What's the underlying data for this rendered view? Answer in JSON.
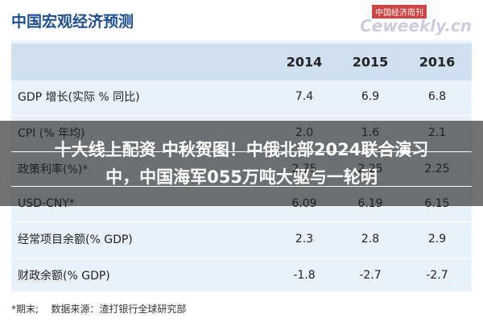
{
  "header": {
    "title": "中国宏观经济预测",
    "logo": "中国经济周刊",
    "logo_sub": "Ceweekly.cn"
  },
  "table": {
    "columns": [
      "2014",
      "2015",
      "2016"
    ],
    "rows": [
      [
        "GDP 增长(实际 % 同比)",
        "7.4",
        "6.9",
        "6.8"
      ],
      [
        "CPI (% 年均)",
        "2.0",
        "1.6",
        "2.1"
      ],
      [
        "政策利率(%)*",
        "2.75",
        "2.25",
        "2.25"
      ],
      [
        "USD-CNY*",
        "6.09",
        "6.19",
        "6.15"
      ],
      [
        "经常项目余额(% GDP)",
        "2.3",
        "2.8",
        "2.9"
      ],
      [
        "财政余额(% GDP)",
        "-1.8",
        "-2.7",
        "-2.7"
      ]
    ]
  },
  "footer": {
    "note": "*期末;",
    "source": "数据来源：渣打银行全球研究部"
  },
  "overlay": {
    "lines": [
      "十大线上配资 中秋贺图！中俄北部2024联合演习",
      "中，中国海军055万吨大驱与一轮明"
    ]
  }
}
